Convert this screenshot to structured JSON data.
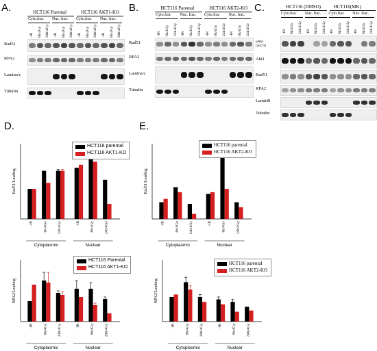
{
  "panels": {
    "a": "A.",
    "b": "B.",
    "c": "C.",
    "d": "D.",
    "e": "E."
  },
  "blot_a": {
    "title_left": "HCT116 Parental",
    "title_right": "HCT116 AKT1-KO",
    "frac": [
      "Cyto.frac",
      "Nuc. frac.",
      "Cyto.frac",
      "Nuc. frac."
    ],
    "lanes": [
      "-IR",
      "6h/4Gy",
      "24h/4Gy",
      "-IR",
      "6h/4Gy",
      "24h/4Gy",
      "-IR",
      "6h/4Gy",
      "24h/4Gy",
      "-IR",
      "6h/4Gy",
      "24h/4Gy"
    ],
    "rows": [
      "Rad51",
      "RPA2",
      "Lamina/c",
      "Tubulin"
    ]
  },
  "blot_b": {
    "title_left": "HCT116 Parental",
    "title_right": "HCT116 AKT2-KO",
    "frac": [
      "Cyto.frac",
      "Nuc. frac.",
      "Cyto.frac",
      "Nuc. frac."
    ],
    "lanes": [
      "-IR",
      "6h/4Gy",
      "24h/4Gy",
      "-IR",
      "6h/4Gy",
      "24h/4Gy",
      "-IR",
      "6h/4Gy",
      "24h/4Gy",
      "-IR",
      "6h/4Gy",
      "24h/4Gy"
    ],
    "rows": [
      "Rad51",
      "RPA2",
      "Lamina/c",
      "Tubulin"
    ]
  },
  "blot_c": {
    "title_left": "HCT116 (DMSO)",
    "title_right": "HCT116(MK)",
    "frac": [
      "Cyto.frac",
      "Nuc. frac.",
      "Cyto.frac",
      "Nuc. frac."
    ],
    "lanes": [
      "-IR",
      "6h/4Gy",
      "24h/4Gy",
      "-IR",
      "6h/4Gy",
      "24h/4Gy",
      "-IR",
      "6h/4Gy",
      "24h/4Gy",
      "-IR",
      "6h/4Gy",
      "24h/4Gy"
    ],
    "rows": [
      "pAkt\n(S473)",
      "Akt1",
      "Rad51",
      "RPA2",
      "LaminB",
      "Tubulin"
    ]
  },
  "colors": {
    "series1": "#000000",
    "series2": "#d42020"
  },
  "chart_data": [
    {
      "id": "D-top",
      "type": "bar",
      "ylabel": "Rad51/Loading",
      "categories": [
        "-IR",
        "6h/4Gy",
        "24h/4Gy",
        "-IR",
        "6h/4Gy",
        "24h/4Gy"
      ],
      "groups": [
        "Cytoplasmic",
        "Nuclear"
      ],
      "series": [
        {
          "name": "HCT116 parental",
          "values": [
            1.0,
            1.6,
            1.6,
            1.7,
            2.0,
            1.3
          ]
        },
        {
          "name": "HCT116 AKT1-KO",
          "values": [
            1.0,
            1.2,
            1.6,
            1.8,
            1.9,
            0.5
          ]
        }
      ],
      "errors": [
        [
          0,
          0,
          0.05,
          0,
          0,
          0
        ],
        [
          0,
          0,
          0.05,
          0,
          0,
          0
        ]
      ],
      "ylim": [
        0,
        2.5
      ]
    },
    {
      "id": "E-top",
      "type": "bar",
      "ylabel": "Rad51/Loading",
      "categories": [
        "-IR",
        "6h/4Gy",
        "24h/4Gy",
        "-IR",
        "6h/4Gy",
        "24h/4Gy"
      ],
      "groups": [
        "Cytoplasmic",
        "Nuclear"
      ],
      "series": [
        {
          "name": "HCT116 parental",
          "values": [
            1.0,
            1.9,
            0.9,
            1.5,
            3.7,
            1.0
          ]
        },
        {
          "name": "HCT116 AKT2-KO",
          "values": [
            1.2,
            1.6,
            0.3,
            1.6,
            1.8,
            0.7
          ]
        }
      ],
      "errors": [
        [
          0,
          0,
          0,
          0,
          0.15,
          0
        ],
        [
          0,
          0,
          0,
          0,
          0,
          0
        ]
      ],
      "ylim": [
        0,
        4.5
      ]
    },
    {
      "id": "D-bottom",
      "type": "bar",
      "ylabel": "RPA2/Loading",
      "categories": [
        "-IR",
        "6h/4Gy",
        "24h/4Gy",
        "-IR",
        "6h/4Gy",
        "24h/4Gy"
      ],
      "groups": [
        "Cytoplasmic",
        "Nuclear"
      ],
      "series": [
        {
          "name": "HCT116 Parental",
          "values": [
            1.0,
            2.0,
            1.4,
            1.6,
            1.6,
            1.1
          ]
        },
        {
          "name": "HCT116 AKT1-KO",
          "values": [
            1.8,
            1.9,
            1.3,
            1.2,
            0.8,
            0.4
          ]
        }
      ],
      "errors": [
        [
          0,
          0.4,
          0.1,
          0.4,
          0.3,
          0.1
        ],
        [
          0,
          0.5,
          0.15,
          0,
          0.1,
          0
        ]
      ],
      "ylim": [
        0,
        3
      ]
    },
    {
      "id": "E-bottom",
      "type": "bar",
      "ylabel": "RPA2/Loading",
      "categories": [
        "-IR",
        "6h/4Gy",
        "24h/4Gy",
        "-IR",
        "6h/4Gy",
        "24h/4Gy"
      ],
      "groups": [
        "Cytoplasmic",
        "Nuclear"
      ],
      "series": [
        {
          "name": "HCT116 parental",
          "values": [
            1.0,
            1.6,
            1.0,
            0.9,
            0.8,
            0.6
          ]
        },
        {
          "name": "HCT116 AKT2-KO",
          "values": [
            1.1,
            1.3,
            0.8,
            0.7,
            0.4,
            0.45
          ]
        }
      ],
      "errors": [
        [
          0,
          0.2,
          0.1,
          0.1,
          0.1,
          0
        ],
        [
          0,
          0.15,
          0,
          0,
          0,
          0
        ]
      ],
      "ylim": [
        0,
        2.5
      ]
    }
  ]
}
